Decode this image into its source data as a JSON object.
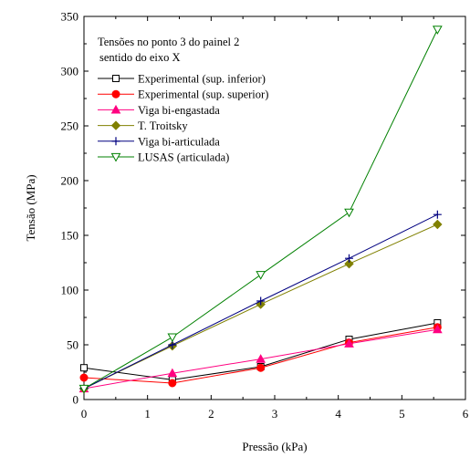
{
  "chart_data": {
    "type": "line",
    "xlabel": "Pressão (kPa)",
    "ylabel": "Tensão (MPa)",
    "xlim": [
      0,
      6
    ],
    "ylim": [
      0,
      350
    ],
    "x_ticks": [
      "0",
      "1",
      "2",
      "3",
      "4",
      "5",
      "6"
    ],
    "y_ticks": [
      "0",
      "50",
      "100",
      "150",
      "200",
      "250",
      "300",
      "350"
    ],
    "grid": false,
    "legend_position": "top-left",
    "legend_title": [
      "Tensões no ponto 3 do painel 2",
      "sentido do eixo X"
    ],
    "x": [
      0,
      1.39,
      2.78,
      4.17,
      5.56
    ],
    "series": [
      {
        "name": "Experimental (sup. inferior)",
        "color": "#000000",
        "marker": "open-square",
        "values": [
          29,
          18,
          30,
          55,
          70
        ]
      },
      {
        "name": "Experimental (sup. superior)",
        "color": "#ff0000",
        "marker": "filled-circle",
        "values": [
          20,
          15,
          29,
          52,
          66
        ]
      },
      {
        "name": "Viga bi-engastada",
        "color": "#ff0080",
        "marker": "filled-triangle",
        "values": [
          10,
          24,
          37,
          51,
          64
        ]
      },
      {
        "name": "T. Troitsky",
        "color": "#808000",
        "marker": "filled-diamond",
        "values": [
          10,
          49,
          87,
          124,
          160
        ]
      },
      {
        "name": "Viga bi-articulada",
        "color": "#000080",
        "marker": "plus",
        "values": [
          10,
          50,
          90,
          129,
          169
        ]
      },
      {
        "name": "LUSAS (articulada)",
        "color": "#008000",
        "marker": "open-triangle-down",
        "values": [
          10,
          57,
          114,
          171,
          338
        ]
      }
    ]
  }
}
